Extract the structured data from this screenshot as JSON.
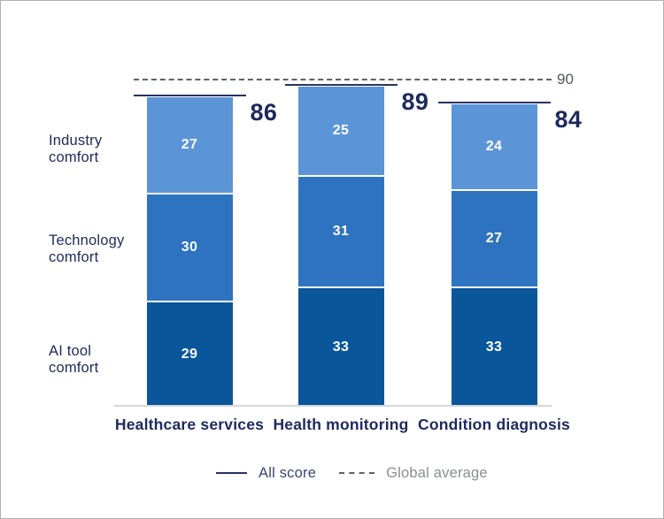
{
  "chart_data": {
    "type": "bar",
    "subtype": "stacked",
    "title": "",
    "categories": [
      "Healthcare services",
      "Health monitoring",
      "Condition diagnosis"
    ],
    "series": [
      {
        "name": "AI tool comfort",
        "values": [
          29,
          33,
          33
        ],
        "color": "#09569B"
      },
      {
        "name": "Technology comfort",
        "values": [
          30,
          31,
          27
        ],
        "color": "#2E73C0"
      },
      {
        "name": "Industry comfort",
        "values": [
          27,
          25,
          24
        ],
        "color": "#5C95D7"
      }
    ],
    "totals": [
      86,
      89,
      84
    ],
    "reference_line": {
      "value": 90,
      "label": "90",
      "name": "Global average"
    },
    "ylim": [
      0,
      90
    ],
    "grid": false,
    "legend_position": "bottom",
    "legend": [
      {
        "label": "All score",
        "style": "solid",
        "color": "#27335F"
      },
      {
        "label": "Global average",
        "style": "dashed",
        "color": "#5E6166"
      }
    ],
    "colors": {
      "total_label_text": "#1E2A5B",
      "category_label_text": "#1E2A5B",
      "row_label_text": "#1E2A5B",
      "reference_text": "#55585C",
      "segment_value_text": "#FFFFFF",
      "axis_line": "#D8D8D8"
    }
  }
}
